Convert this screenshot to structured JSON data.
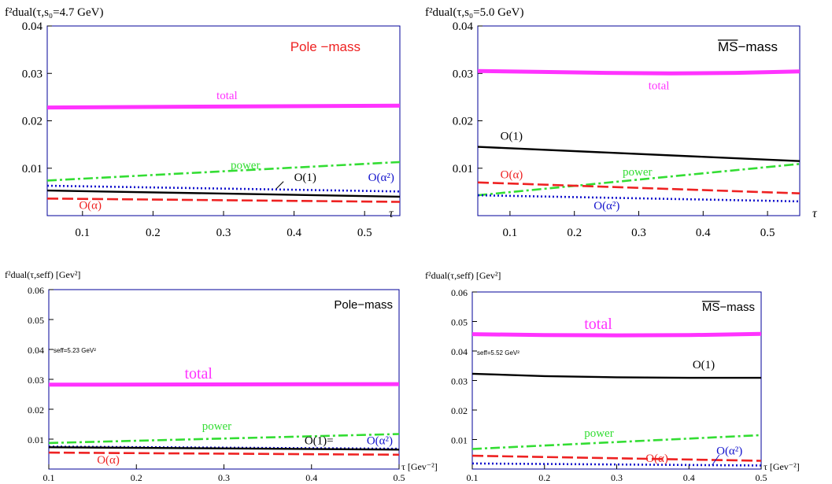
{
  "colors": {
    "total": "#ff33ff",
    "power": "#33dd33",
    "O1": "#000000",
    "Oalpha": "#ee2222",
    "Oalpha2": "#1111cc",
    "frame": "#000099"
  },
  "chart_data": [
    {
      "type": "line",
      "ylabel": "f²dual(τ,s₀=4.7 GeV)",
      "xlabel": "τ",
      "scheme": "Pole −mass",
      "xlim": [
        0.05,
        0.55
      ],
      "ylim": [
        0.0,
        0.04
      ],
      "xticks": [
        "0.1",
        "0.2",
        "0.3",
        "0.4",
        "0.5"
      ],
      "yticks": [
        "0.01",
        "0.02",
        "0.03",
        "0.04"
      ],
      "series": [
        {
          "name": "total",
          "style": "total",
          "x": [
            0.05,
            0.55
          ],
          "y": [
            0.0228,
            0.0232
          ]
        },
        {
          "name": "power",
          "style": "power",
          "x": [
            0.05,
            0.55
          ],
          "y": [
            0.0074,
            0.0113
          ]
        },
        {
          "name": "O(α²)",
          "style": "Oalpha2",
          "x": [
            0.05,
            0.55
          ],
          "y": [
            0.0063,
            0.0051
          ]
        },
        {
          "name": "O(1)",
          "style": "O1",
          "x": [
            0.05,
            0.55
          ],
          "y": [
            0.0053,
            0.004
          ]
        },
        {
          "name": "O(α)",
          "style": "Oalpha",
          "x": [
            0.05,
            0.55
          ],
          "y": [
            0.0036,
            0.0029
          ]
        }
      ],
      "annotations": [
        {
          "text": "total",
          "style": "total",
          "x": 0.29,
          "y": 0.0246,
          "size": "normal"
        },
        {
          "text": "power",
          "style": "power",
          "x": 0.31,
          "y": 0.0099,
          "size": "normal"
        },
        {
          "text": "O(1)",
          "style": "O1",
          "x": 0.4,
          "y": 0.0073,
          "size": "normal"
        },
        {
          "text": "O(α²)",
          "style": "Oalpha2",
          "x": 0.505,
          "y": 0.0073,
          "size": "normal"
        },
        {
          "text": "O(α)",
          "style": "Oalpha",
          "x": 0.095,
          "y": 0.0014,
          "size": "normal"
        }
      ]
    },
    {
      "type": "line",
      "ylabel": "f²dual(τ,s₀=5.0 GeV)",
      "xlabel": "τ",
      "scheme": "MS−mass",
      "xlim": [
        0.05,
        0.55
      ],
      "ylim": [
        0.0,
        0.04
      ],
      "xticks": [
        "0.1",
        "0.2",
        "0.3",
        "0.4",
        "0.5"
      ],
      "yticks": [
        "0.01",
        "0.02",
        "0.03",
        "0.04"
      ],
      "series": [
        {
          "name": "total",
          "style": "total",
          "x": [
            0.05,
            0.15,
            0.25,
            0.35,
            0.45,
            0.55
          ],
          "y": [
            0.0305,
            0.0303,
            0.0301,
            0.03,
            0.0301,
            0.0304
          ]
        },
        {
          "name": "O(1)",
          "style": "O1",
          "x": [
            0.05,
            0.55
          ],
          "y": [
            0.0145,
            0.0115
          ]
        },
        {
          "name": "power",
          "style": "power",
          "x": [
            0.05,
            0.55
          ],
          "y": [
            0.0043,
            0.0109
          ]
        },
        {
          "name": "O(α)",
          "style": "Oalpha",
          "x": [
            0.05,
            0.55
          ],
          "y": [
            0.007,
            0.0047
          ]
        },
        {
          "name": "O(α²)",
          "style": "Oalpha2",
          "x": [
            0.05,
            0.55
          ],
          "y": [
            0.0043,
            0.003
          ]
        }
      ],
      "annotations": [
        {
          "text": "total",
          "style": "total",
          "x": 0.315,
          "y": 0.0266,
          "size": "normal"
        },
        {
          "text": "O(1)",
          "style": "O1",
          "x": 0.085,
          "y": 0.016,
          "size": "normal"
        },
        {
          "text": "power",
          "style": "power",
          "x": 0.275,
          "y": 0.0085,
          "size": "normal"
        },
        {
          "text": "O(α)",
          "style": "Oalpha",
          "x": 0.085,
          "y": 0.0079,
          "size": "normal"
        },
        {
          "text": "O(α²)",
          "style": "Oalpha2",
          "x": 0.23,
          "y": 0.0013,
          "size": "normal"
        }
      ]
    },
    {
      "type": "line",
      "ylabel": "f²dual(τ,seff) [Gev²]",
      "xlabel": "τ [Gev⁻²]",
      "scheme": "Pole−mass",
      "note": "seff=5.23 GeV²",
      "xlim": [
        0.1,
        0.5
      ],
      "ylim": [
        0.0,
        0.06
      ],
      "xticks": [
        "0.1",
        "0.2",
        "0.3",
        "0.4",
        "0.5"
      ],
      "yticks": [
        "0.01",
        "0.02",
        "0.03",
        "0.04",
        "0.05",
        "0.06"
      ],
      "series": [
        {
          "name": "total",
          "style": "total",
          "x": [
            0.1,
            0.5
          ],
          "y": [
            0.0282,
            0.0284
          ]
        },
        {
          "name": "power",
          "style": "power",
          "x": [
            0.1,
            0.5
          ],
          "y": [
            0.0087,
            0.0117
          ]
        },
        {
          "name": "O(α²)",
          "style": "Oalpha2",
          "x": [
            0.1,
            0.5
          ],
          "y": [
            0.0075,
            0.0068
          ]
        },
        {
          "name": "O(1)",
          "style": "O1",
          "x": [
            0.1,
            0.5
          ],
          "y": [
            0.0073,
            0.0065
          ]
        },
        {
          "name": "O(α)",
          "style": "Oalpha",
          "x": [
            0.1,
            0.5
          ],
          "y": [
            0.0055,
            0.0048
          ]
        }
      ],
      "annotations": [
        {
          "text": "total",
          "style": "total",
          "x": 0.255,
          "y": 0.0302,
          "size": "large"
        },
        {
          "text": "power",
          "style": "power",
          "x": 0.275,
          "y": 0.0132,
          "size": "normal"
        },
        {
          "text": "O(1)=",
          "style": "O1",
          "x": 0.392,
          "y": 0.0083,
          "size": "normal"
        },
        {
          "text": "O(α²)",
          "style": "Oalpha2",
          "x": 0.463,
          "y": 0.0083,
          "size": "normal"
        },
        {
          "text": "O(α)",
          "style": "Oalpha",
          "x": 0.155,
          "y": 0.0018,
          "size": "normal"
        }
      ]
    },
    {
      "type": "line",
      "ylabel": "f²dual(τ,seff) [Gev²]",
      "xlabel": "τ [Gev⁻²]",
      "scheme": "MS−mass",
      "note": "seff=5.52 GeV²",
      "xlim": [
        0.1,
        0.5
      ],
      "ylim": [
        0.0,
        0.06
      ],
      "xticks": [
        "0.1",
        "0.2",
        "0.3",
        "0.4",
        "0.5"
      ],
      "yticks": [
        "0.01",
        "0.02",
        "0.03",
        "0.04",
        "0.05",
        "0.06"
      ],
      "series": [
        {
          "name": "total",
          "style": "total",
          "x": [
            0.1,
            0.2,
            0.3,
            0.4,
            0.5
          ],
          "y": [
            0.0457,
            0.0454,
            0.0453,
            0.0454,
            0.0458
          ]
        },
        {
          "name": "O(1)",
          "style": "O1",
          "x": [
            0.1,
            0.2,
            0.3,
            0.4,
            0.5
          ],
          "y": [
            0.0323,
            0.0315,
            0.0311,
            0.0309,
            0.0309
          ]
        },
        {
          "name": "power",
          "style": "power",
          "x": [
            0.1,
            0.5
          ],
          "y": [
            0.0068,
            0.0115
          ]
        },
        {
          "name": "O(α)",
          "style": "Oalpha",
          "x": [
            0.1,
            0.5
          ],
          "y": [
            0.0045,
            0.0028
          ]
        },
        {
          "name": "O(α²)",
          "style": "Oalpha2",
          "x": [
            0.1,
            0.5
          ],
          "y": [
            0.0019,
            0.0012
          ]
        }
      ],
      "annotations": [
        {
          "text": "total",
          "style": "total",
          "x": 0.255,
          "y": 0.0475,
          "size": "large"
        },
        {
          "text": "O(1)",
          "style": "O1",
          "x": 0.405,
          "y": 0.0342,
          "size": "normal"
        },
        {
          "text": "power",
          "style": "power",
          "x": 0.255,
          "y": 0.0109,
          "size": "normal"
        },
        {
          "text": "O(α)",
          "style": "Oalpha",
          "x": 0.34,
          "y": 0.0024,
          "size": "normal"
        },
        {
          "text": "O(α²)",
          "style": "Oalpha2",
          "x": 0.438,
          "y": 0.005,
          "size": "normal"
        }
      ]
    }
  ]
}
